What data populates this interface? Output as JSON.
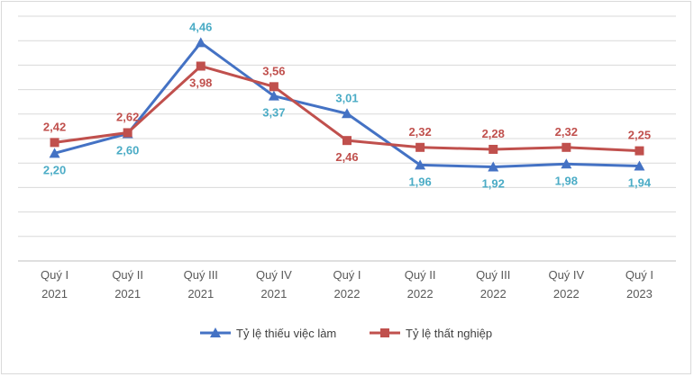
{
  "chart_data": {
    "type": "line",
    "categories": [
      [
        "Quý I",
        "2021"
      ],
      [
        "Quý II",
        "2021"
      ],
      [
        "Quý III",
        "2021"
      ],
      [
        "Quý IV",
        "2021"
      ],
      [
        "Quý I",
        "2022"
      ],
      [
        "Quý II",
        "2022"
      ],
      [
        "Quý III",
        "2022"
      ],
      [
        "Quý IV",
        "2022"
      ],
      [
        "Quý I",
        "2023"
      ]
    ],
    "ylim": [
      0,
      5
    ],
    "grid": true,
    "legend_position": "bottom",
    "series": [
      {
        "name": "Tỷ lệ thiếu việc làm",
        "color": "#4472C4",
        "label_color": "#4BACC6",
        "marker": "triangle",
        "values": [
          2.2,
          2.6,
          4.46,
          3.37,
          3.01,
          1.96,
          1.92,
          1.98,
          1.94
        ],
        "labels": [
          "2,20",
          "2,60",
          "4,46",
          "3,37",
          "3,01",
          "1,96",
          "1,92",
          "1,98",
          "1,94"
        ],
        "label_pos": [
          "below",
          "below",
          "above",
          "below",
          "above",
          "below",
          "below",
          "below",
          "below"
        ]
      },
      {
        "name": "Tỷ lệ thất nghiệp",
        "color": "#C0504D",
        "label_color": "#C0504D",
        "marker": "square",
        "values": [
          2.42,
          2.62,
          3.98,
          3.56,
          2.46,
          2.32,
          2.28,
          2.32,
          2.25
        ],
        "labels": [
          "2,42",
          "2,62",
          "3,98",
          "3,56",
          "2,46",
          "2,32",
          "2,28",
          "2,32",
          "2,25"
        ],
        "label_pos": [
          "above",
          "above",
          "below",
          "above",
          "below",
          "above",
          "above",
          "above",
          "above"
        ]
      }
    ]
  }
}
